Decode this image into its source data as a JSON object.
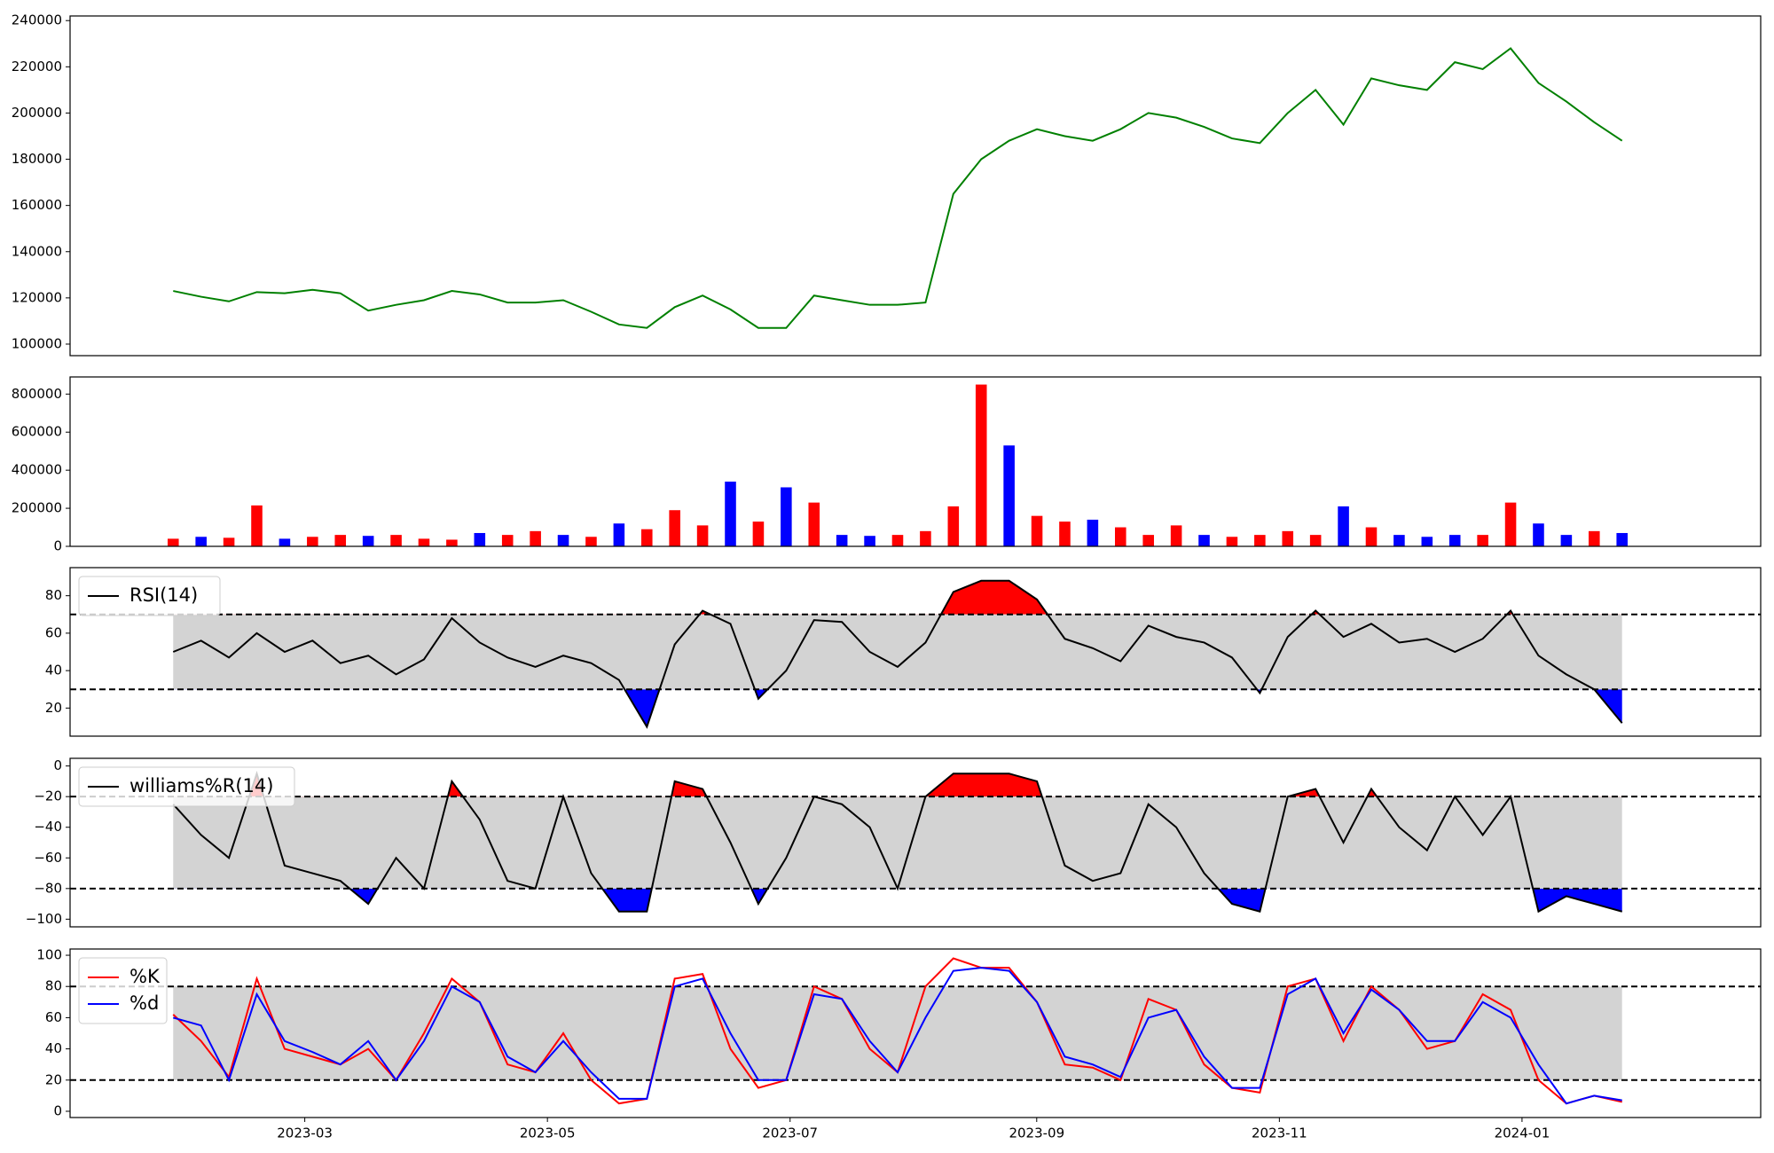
{
  "chart_data": [
    {
      "type": "line",
      "series": [
        {
          "color": "green",
          "values": [
            123000,
            120500,
            118500,
            122500,
            122000,
            123500,
            122000,
            114500,
            117000,
            119000,
            123000,
            121500,
            118000,
            118000,
            119000,
            114000,
            108500,
            107000,
            116000,
            121000,
            115000,
            107000,
            107000,
            121000,
            119000,
            117000,
            117000,
            118000,
            165000,
            180000,
            188000,
            193000,
            190000,
            188000,
            193000,
            200000,
            198000,
            194000,
            189000,
            187000,
            200000,
            210000,
            195000,
            215000,
            212000,
            210000,
            222000,
            219000,
            228000,
            213000,
            205000,
            196000,
            188000
          ]
        }
      ],
      "ylim": [
        95000,
        242000
      ],
      "yticks": [
        100000,
        120000,
        140000,
        160000,
        180000,
        200000,
        220000,
        240000
      ]
    },
    {
      "type": "bar",
      "values": [
        40000,
        50000,
        45000,
        215000,
        40000,
        50000,
        60000,
        55000,
        60000,
        40000,
        35000,
        70000,
        60000,
        80000,
        60000,
        50000,
        120000,
        90000,
        190000,
        110000,
        340000,
        130000,
        310000,
        230000,
        60000,
        55000,
        60000,
        80000,
        210000,
        850000,
        530000,
        160000,
        130000,
        140000,
        100000,
        60000,
        110000,
        60000,
        50000,
        60000,
        80000,
        60000,
        210000,
        100000,
        60000,
        50000,
        60000,
        60000,
        230000,
        120000,
        60000,
        80000,
        70000
      ],
      "colors": [
        "red",
        "blue",
        "red",
        "red",
        "blue",
        "red",
        "red",
        "blue",
        "red",
        "red",
        "red",
        "blue",
        "red",
        "red",
        "blue",
        "red",
        "blue",
        "red",
        "red",
        "red",
        "blue",
        "red",
        "blue",
        "red",
        "blue",
        "blue",
        "red",
        "red",
        "red",
        "red",
        "blue",
        "red",
        "red",
        "blue",
        "red",
        "red",
        "red",
        "blue",
        "red",
        "red",
        "red",
        "red",
        "blue",
        "red",
        "blue",
        "blue",
        "blue",
        "red",
        "red",
        "blue",
        "blue",
        "red",
        "blue"
      ],
      "ylim": [
        0,
        890000
      ],
      "yticks": [
        0,
        200000,
        400000,
        600000,
        800000
      ]
    },
    {
      "type": "band",
      "series": [
        {
          "name": "RSI(14)",
          "color": "black",
          "values": [
            50,
            56,
            47,
            60,
            50,
            56,
            44,
            48,
            38,
            46,
            68,
            55,
            47,
            42,
            48,
            44,
            35,
            10,
            54,
            72,
            65,
            25,
            40,
            67,
            66,
            50,
            42,
            55,
            82,
            88,
            88,
            78,
            57,
            52,
            45,
            64,
            58,
            55,
            47,
            28,
            58,
            72,
            58,
            65,
            55,
            57,
            50,
            57,
            72,
            48,
            38,
            30,
            12
          ]
        }
      ],
      "ylim": [
        5,
        95
      ],
      "yticks": [
        20,
        40,
        60,
        80
      ],
      "bands": [
        30,
        70
      ],
      "band_fill": "lightgray",
      "overbought_color": "red",
      "oversold_color": "blue",
      "legend": "upper left"
    },
    {
      "type": "band",
      "series": [
        {
          "name": "williams%R(14)",
          "color": "black",
          "values": [
            -25,
            -45,
            -60,
            -5,
            -65,
            -70,
            -75,
            -90,
            -60,
            -80,
            -10,
            -35,
            -75,
            -80,
            -20,
            -70,
            -95,
            -95,
            -10,
            -15,
            -50,
            -90,
            -60,
            -20,
            -25,
            -40,
            -80,
            -20,
            -5,
            -5,
            -5,
            -10,
            -65,
            -75,
            -70,
            -25,
            -40,
            -70,
            -90,
            -95,
            -20,
            -15,
            -50,
            -15,
            -40,
            -55,
            -20,
            -45,
            -20,
            -95,
            -85,
            -90,
            -95
          ]
        }
      ],
      "ylim": [
        -105,
        5
      ],
      "yticks": [
        0,
        {
          "value": -20,
          "label": "−20"
        },
        {
          "value": -40,
          "label": "−40"
        },
        {
          "value": -60,
          "label": "−60"
        },
        {
          "value": -80,
          "label": "−80"
        },
        {
          "value": -100,
          "label": "−100"
        }
      ],
      "bands": [
        -80,
        -20
      ],
      "band_fill": "lightgray",
      "overbought_color": "red",
      "oversold_color": "blue",
      "legend": "upper left"
    },
    {
      "type": "band",
      "series": [
        {
          "name": "%K",
          "color": "red",
          "values": [
            62,
            45,
            22,
            85,
            40,
            35,
            30,
            40,
            20,
            50,
            85,
            70,
            30,
            25,
            50,
            20,
            5,
            8,
            85,
            88,
            40,
            15,
            20,
            80,
            72,
            40,
            25,
            80,
            98,
            92,
            92,
            70,
            30,
            28,
            20,
            72,
            65,
            30,
            15,
            12,
            80,
            85,
            45,
            80,
            65,
            40,
            45,
            75,
            65,
            20,
            5,
            10,
            6
          ]
        },
        {
          "name": "%d",
          "color": "blue",
          "values": [
            60,
            55,
            20,
            75,
            45,
            38,
            30,
            45,
            20,
            45,
            80,
            70,
            35,
            25,
            45,
            25,
            8,
            8,
            80,
            85,
            50,
            20,
            20,
            75,
            72,
            45,
            25,
            60,
            90,
            92,
            90,
            70,
            35,
            30,
            22,
            60,
            65,
            35,
            15,
            15,
            75,
            85,
            50,
            78,
            65,
            45,
            45,
            70,
            60,
            30,
            5,
            10,
            7
          ]
        }
      ],
      "ylim": [
        -4,
        104
      ],
      "yticks": [
        0,
        20,
        40,
        60,
        80,
        100
      ],
      "bands": [
        20,
        80
      ],
      "band_fill": "lightgray",
      "legend": "upper left",
      "xlim": [
        "2023-01",
        "2024-03"
      ],
      "xticks": [
        "2023-03",
        "2023-05",
        "2023-07",
        "2023-09",
        "2023-11",
        "2024-01"
      ]
    }
  ]
}
